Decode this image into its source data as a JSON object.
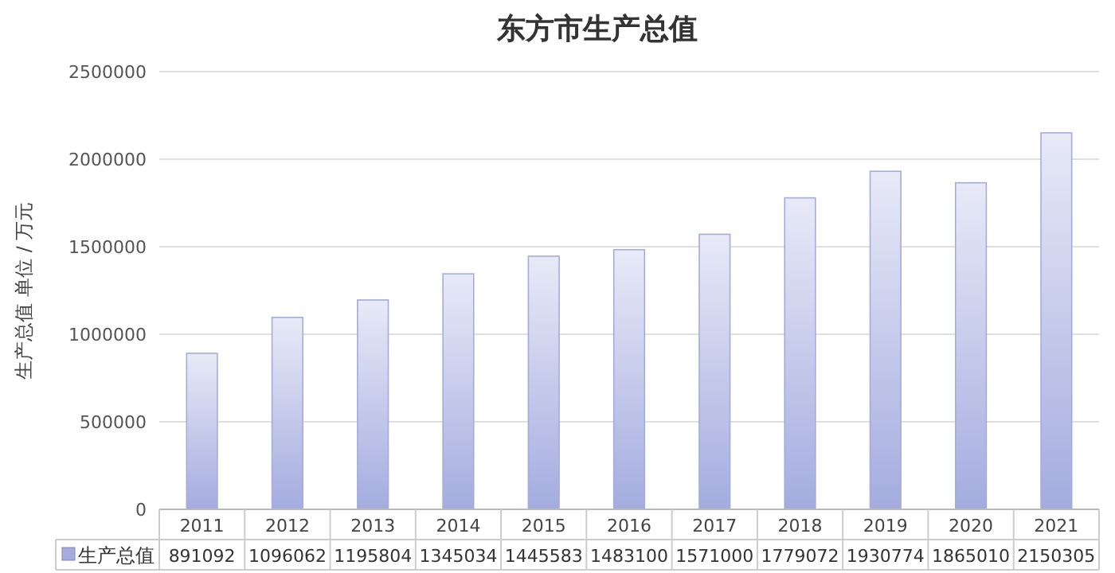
{
  "chart_data": {
    "type": "bar",
    "title": "东方市生产总值",
    "ylabel": "生产总值 单位 / 万元",
    "categories": [
      "2011",
      "2012",
      "2013",
      "2014",
      "2015",
      "2016",
      "2017",
      "2018",
      "2019",
      "2020",
      "2021"
    ],
    "series": [
      {
        "name": "生产总值",
        "color": "#a4acdf",
        "values": [
          891092,
          1096062,
          1195804,
          1345034,
          1445583,
          1483100,
          1571000,
          1779072,
          1930774,
          1865010,
          2150305
        ]
      }
    ],
    "ylim": [
      0,
      2500000
    ],
    "yticks": [
      0,
      500000,
      1000000,
      1500000,
      2000000,
      2500000
    ],
    "grid": "y",
    "legend": "bottom",
    "data_labels": true
  }
}
